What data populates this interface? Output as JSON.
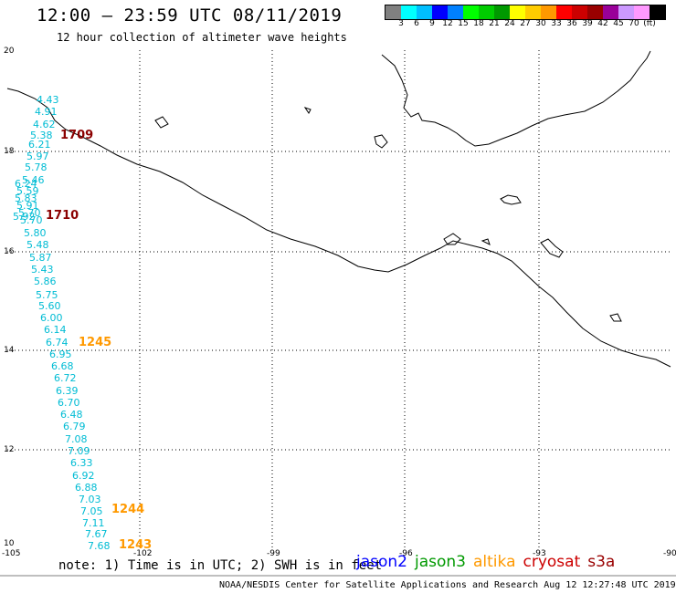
{
  "header": {
    "title": "12:00 – 23:59 UTC 08/11/2019",
    "subtitle": "12 hour collection of altimeter wave heights"
  },
  "scale": {
    "unit": "(ft)",
    "colors": [
      "#808080",
      "#00ffff",
      "#00bfff",
      "#0000ff",
      "#0080ff",
      "#00ff00",
      "#00cc00",
      "#009900",
      "#ffff00",
      "#ffcc00",
      "#ff9900",
      "#ff0000",
      "#cc0000",
      "#990000",
      "#990099",
      "#cc99ff",
      "#ff99ff",
      "#000000"
    ],
    "labels": [
      "3",
      "6",
      "9",
      "12",
      "15",
      "18",
      "21",
      "24",
      "27",
      "30",
      "33",
      "36",
      "39",
      "42",
      "45",
      "70"
    ]
  },
  "axes": {
    "lon_labels": [
      "-105",
      "-102",
      "-99",
      "-96",
      "-93",
      "-90"
    ],
    "lat_labels": [
      "20",
      "18",
      "16",
      "14",
      "12",
      "10"
    ]
  },
  "wave_heights": [
    "4.43",
    "4.91",
    "4.62",
    "5.38",
    "6.21",
    "5.97",
    "5.78",
    "5.46",
    "6.24",
    "5.59",
    "5.83",
    "5.91",
    "5.70",
    "5.92",
    "5.70",
    "5.80",
    "5.48",
    "5.87",
    "5.43",
    "5.86",
    "5.75",
    "5.60",
    "6.00",
    "6.14",
    "6.74",
    "6.95",
    "6.68",
    "6.72",
    "6.39",
    "6.70",
    "6.48",
    "6.79",
    "7.08",
    "7.09",
    "6.33",
    "6.92",
    "6.88",
    "7.03",
    "7.05",
    "7.11",
    "7.67",
    "7.68"
  ],
  "pass_times": [
    {
      "time": "1709",
      "color": "#8b0000"
    },
    {
      "time": "1710",
      "color": "#8b0000"
    },
    {
      "time": "1245",
      "color": "#ff9900"
    },
    {
      "time": "1244",
      "color": "#ff9900"
    },
    {
      "time": "1243",
      "color": "#ff9900"
    }
  ],
  "footer": {
    "note": "note: 1) Time is in UTC; 2) SWH is in feet",
    "credit": "NOAA/NESDIS Center for Satellite Applications and Research   Aug 12 12:27:48 UTC 2019"
  },
  "legend": {
    "items": [
      {
        "label": "jason2",
        "color": "#0000ff"
      },
      {
        "label": "jason3",
        "color": "#009900"
      },
      {
        "label": "altika",
        "color": "#ff9900"
      },
      {
        "label": "cryosat",
        "color": "#cc0000"
      },
      {
        "label": "s3a",
        "color": "#990000"
      }
    ]
  }
}
